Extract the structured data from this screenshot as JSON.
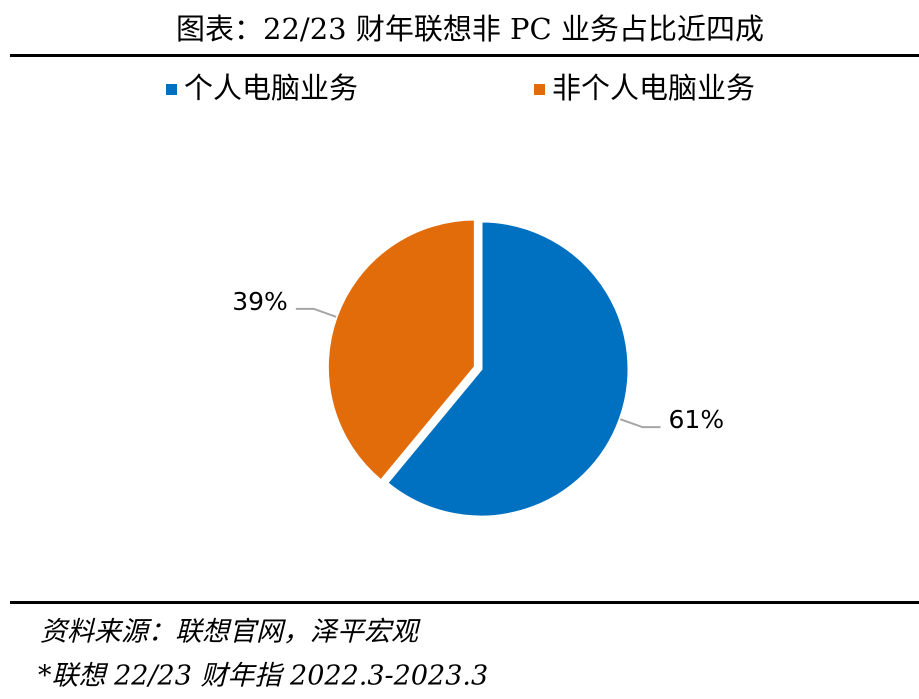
{
  "chart_data": {
    "type": "pie",
    "title": "图表：22/23 财年联想非 PC 业务占比近四成",
    "categories": [
      "个人电脑业务",
      "非个人电脑业务"
    ],
    "values": [
      61,
      39
    ],
    "value_labels": [
      "61%",
      "39%"
    ],
    "colors": [
      "#0070c0",
      "#e36c0a"
    ],
    "legend": "top",
    "source": "资料来源：联想官网，泽平宏观",
    "note": "*联想 22/23 财年指 2022.3-2023.3"
  }
}
